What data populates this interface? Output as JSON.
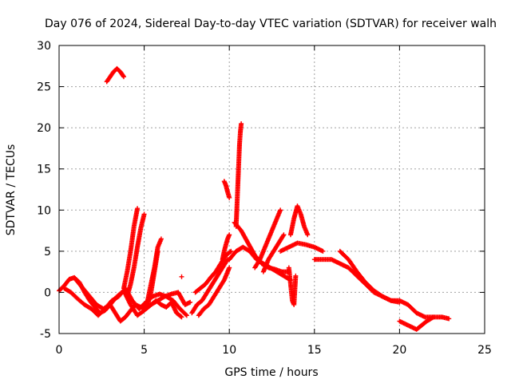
{
  "chart_data": {
    "type": "scatter",
    "title": "Day 076 of 2024, Sidereal Day-to-day VTEC variation (SDTVAR) for receiver walh",
    "xlabel": "GPS time / hours",
    "ylabel": "SDTVAR / TECUs",
    "xlim": [
      0,
      25
    ],
    "ylim": [
      -5,
      30
    ],
    "xticks": [
      0,
      5,
      10,
      15,
      20,
      25
    ],
    "yticks": [
      -5,
      0,
      5,
      10,
      15,
      20,
      25,
      30
    ],
    "grid": true,
    "marker": "+",
    "color": "#ff0000",
    "segments": [
      {
        "name": "early-base",
        "x": [
          0.0,
          0.3,
          0.6,
          0.9,
          1.2,
          1.5,
          1.8,
          2.1,
          2.4,
          2.7,
          3.0,
          3.3,
          3.6,
          3.9,
          4.2,
          4.5,
          4.8,
          5.1,
          5.4,
          5.7,
          6.0,
          6.3,
          6.6,
          6.9,
          7.2
        ],
        "y": [
          0.2,
          0.8,
          1.6,
          1.8,
          1.2,
          0.0,
          -1.0,
          -1.8,
          -2.5,
          -2.2,
          -1.5,
          -2.5,
          -3.5,
          -3.0,
          -2.2,
          -1.5,
          -1.8,
          -2.0,
          -1.5,
          -1.0,
          -1.5,
          -1.8,
          -1.2,
          -2.5,
          -3.0
        ]
      },
      {
        "name": "early-base-2",
        "x": [
          0.3,
          0.7,
          1.1,
          1.5,
          1.9,
          2.3,
          2.7,
          3.1,
          3.5,
          3.9,
          4.3,
          4.7,
          5.1,
          5.5,
          5.9,
          6.3,
          6.7,
          7.1,
          7.5
        ],
        "y": [
          0.5,
          0.0,
          -0.8,
          -1.5,
          -2.0,
          -2.8,
          -2.0,
          -1.0,
          -0.5,
          0.5,
          -1.0,
          -2.0,
          -1.2,
          -0.5,
          -0.2,
          -0.5,
          -1.0,
          -2.0,
          -2.8
        ]
      },
      {
        "name": "early-base-3",
        "x": [
          1.0,
          1.4,
          1.8,
          2.2,
          2.6,
          3.0,
          3.4,
          3.8,
          4.2,
          4.6,
          5.0,
          5.4,
          5.8,
          6.2,
          6.6,
          7.0,
          7.4,
          7.7
        ],
        "y": [
          1.5,
          0.5,
          -0.5,
          -1.5,
          -2.0,
          -1.5,
          -0.5,
          0.2,
          -1.5,
          -2.8,
          -2.2,
          -1.5,
          -1.0,
          -0.5,
          -0.2,
          0.0,
          -1.5,
          -1.2
        ]
      },
      {
        "name": "peak-early",
        "x": [
          2.8,
          3.0,
          3.2,
          3.4,
          3.6,
          3.7,
          3.8
        ],
        "y": [
          25.6,
          26.2,
          26.8,
          27.2,
          26.8,
          26.5,
          26.2
        ]
      },
      {
        "name": "rise-4",
        "x": [
          3.8,
          4.0,
          4.2,
          4.4,
          4.6
        ],
        "y": [
          0.5,
          2.5,
          5.0,
          8.0,
          10.2
        ]
      },
      {
        "name": "rise-4b",
        "x": [
          4.0,
          4.2,
          4.4,
          4.6,
          4.8,
          5.0
        ],
        "y": [
          -0.5,
          1.0,
          3.0,
          5.5,
          7.8,
          9.5
        ]
      },
      {
        "name": "rise-5",
        "x": [
          5.0,
          5.2,
          5.4,
          5.6,
          5.8,
          6.0
        ],
        "y": [
          -2.0,
          -1.0,
          1.0,
          3.0,
          5.5,
          6.5
        ]
      },
      {
        "name": "rise-5b",
        "x": [
          5.2,
          5.4,
          5.6,
          5.8
        ],
        "y": [
          -1.5,
          0.0,
          2.5,
          5.0
        ]
      },
      {
        "name": "lone-7",
        "x": [
          7.2
        ],
        "y": [
          1.9
        ]
      },
      {
        "name": "mid-base",
        "x": [
          7.8,
          8.1,
          8.4,
          8.7,
          9.0,
          9.3,
          9.6,
          9.9
        ],
        "y": [
          -2.5,
          -1.5,
          -1.0,
          0.0,
          1.0,
          2.0,
          3.0,
          4.0
        ]
      },
      {
        "name": "mid-base-2",
        "x": [
          8.0,
          8.3,
          8.6,
          8.9,
          9.2,
          9.5,
          9.8,
          10.1
        ],
        "y": [
          0.0,
          0.5,
          1.0,
          1.8,
          2.5,
          3.5,
          4.5,
          5.0
        ]
      },
      {
        "name": "mid-base-3",
        "x": [
          8.2,
          8.5,
          8.8,
          9.1,
          9.4,
          9.7,
          10.0
        ],
        "y": [
          -2.8,
          -2.0,
          -1.5,
          -0.5,
          0.5,
          1.5,
          3.0
        ]
      },
      {
        "name": "rise-9",
        "x": [
          9.6,
          9.7,
          9.8,
          9.9,
          10.0
        ],
        "y": [
          4.0,
          5.0,
          5.8,
          6.5,
          7.0
        ]
      },
      {
        "name": "spike-9.8",
        "x": [
          9.7,
          9.8,
          9.9,
          10.0
        ],
        "y": [
          13.5,
          13.0,
          12.2,
          11.5
        ]
      },
      {
        "name": "spike-10.5",
        "x": [
          10.4,
          10.45,
          10.5,
          10.55,
          10.6,
          10.65,
          10.7
        ],
        "y": [
          8.0,
          10.5,
          13.0,
          15.5,
          18.0,
          19.5,
          20.5
        ]
      },
      {
        "name": "hump-11",
        "x": [
          10.0,
          10.4,
          10.8,
          11.2,
          11.6,
          12.0,
          12.4,
          12.8,
          13.2,
          13.6
        ],
        "y": [
          4.0,
          5.0,
          5.5,
          5.0,
          4.0,
          3.5,
          3.0,
          2.5,
          2.0,
          1.5
        ]
      },
      {
        "name": "hump-11b",
        "x": [
          10.3,
          10.7,
          11.1,
          11.5,
          11.9,
          12.3,
          12.7,
          13.1,
          13.5
        ],
        "y": [
          8.5,
          7.5,
          6.0,
          4.5,
          3.5,
          3.0,
          2.8,
          2.5,
          2.5
        ]
      },
      {
        "name": "rise-12",
        "x": [
          11.5,
          11.8,
          12.1,
          12.4,
          12.7,
          13.0
        ],
        "y": [
          3.0,
          4.0,
          5.5,
          7.0,
          8.5,
          10.0
        ]
      },
      {
        "name": "rise-12b",
        "x": [
          12.0,
          12.3,
          12.6,
          12.9,
          13.2
        ],
        "y": [
          2.5,
          4.0,
          5.0,
          6.0,
          7.0
        ]
      },
      {
        "name": "drop-13.6",
        "x": [
          13.5,
          13.6,
          13.7,
          13.8,
          13.9
        ],
        "y": [
          3.0,
          1.0,
          -1.0,
          -1.5,
          2.0
        ]
      },
      {
        "name": "peak-14",
        "x": [
          13.6,
          13.8,
          14.0,
          14.2,
          14.4,
          14.6
        ],
        "y": [
          7.0,
          9.0,
          10.5,
          9.5,
          8.0,
          7.0
        ]
      },
      {
        "name": "plateau-14",
        "x": [
          13.0,
          13.5,
          14.0,
          14.5,
          15.0,
          15.5
        ],
        "y": [
          5.0,
          5.5,
          6.0,
          5.8,
          5.5,
          5.0
        ]
      },
      {
        "name": "decline",
        "x": [
          15.0,
          15.5,
          16.0,
          16.5,
          17.0,
          17.5,
          18.0,
          18.5,
          19.0,
          19.5,
          20.0,
          20.5,
          21.0,
          21.5,
          22.0,
          22.5,
          22.9
        ],
        "y": [
          4.0,
          4.0,
          4.0,
          3.5,
          3.0,
          2.0,
          1.0,
          0.0,
          -0.5,
          -1.0,
          -1.0,
          -1.5,
          -2.5,
          -3.0,
          -3.0,
          -3.0,
          -3.2
        ]
      },
      {
        "name": "decline-b",
        "x": [
          16.5,
          17.0,
          17.5,
          18.0,
          18.5,
          19.0,
          19.5,
          20.0
        ],
        "y": [
          5.0,
          4.0,
          2.5,
          1.2,
          0.2,
          -0.5,
          -1.0,
          -1.2
        ]
      },
      {
        "name": "dip-21",
        "x": [
          20.0,
          20.5,
          21.0,
          21.3,
          21.6,
          22.0
        ],
        "y": [
          -3.5,
          -4.0,
          -4.5,
          -4.0,
          -3.5,
          -3.0
        ]
      }
    ]
  }
}
